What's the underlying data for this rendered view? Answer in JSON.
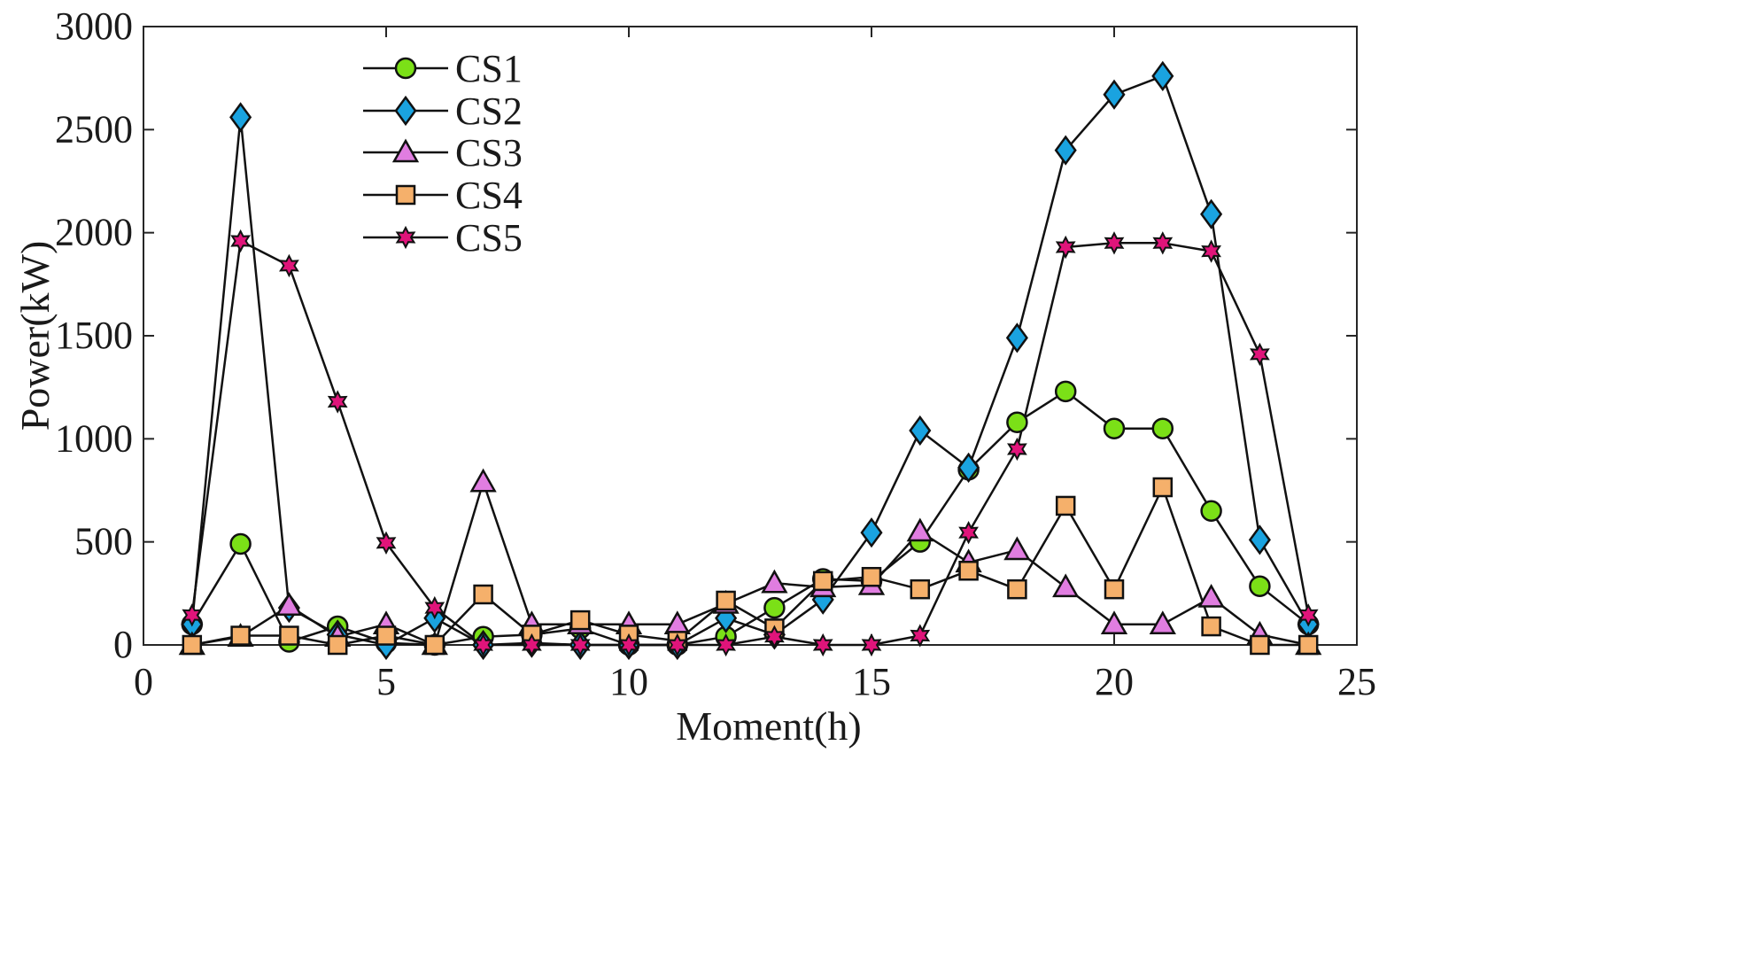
{
  "chart_data": {
    "type": "line",
    "xlabel": "Moment(h)",
    "ylabel": "Power(kW)",
    "xlim": [
      0,
      25
    ],
    "ylim": [
      0,
      3000
    ],
    "xticks": [
      0,
      5,
      10,
      15,
      20,
      25
    ],
    "yticks": [
      0,
      500,
      1000,
      1500,
      2000,
      2500,
      3000
    ],
    "grid": false,
    "legend_position": "top-left",
    "x": [
      1,
      2,
      3,
      4,
      5,
      6,
      7,
      8,
      9,
      10,
      11,
      12,
      13,
      14,
      15,
      16,
      17,
      18,
      19,
      20,
      21,
      22,
      23,
      24
    ],
    "series": [
      {
        "name": "CS1",
        "marker": "circle",
        "color": "#7be017",
        "values": [
          100,
          490,
          15,
          90,
          10,
          0,
          40,
          50,
          80,
          0,
          0,
          40,
          180,
          320,
          310,
          500,
          850,
          1080,
          1230,
          1050,
          1050,
          650,
          285,
          100
        ]
      },
      {
        "name": "CS2",
        "marker": "diamond",
        "color": "#1aa3e0",
        "values": [
          100,
          2560,
          180,
          50,
          0,
          130,
          0,
          10,
          0,
          0,
          0,
          130,
          50,
          220,
          545,
          1040,
          860,
          1490,
          2400,
          2670,
          2760,
          2090,
          510,
          100
        ]
      },
      {
        "name": "CS3",
        "marker": "triangle",
        "color": "#e07de0",
        "values": [
          0,
          40,
          190,
          40,
          100,
          0,
          790,
          100,
          100,
          100,
          100,
          200,
          300,
          280,
          290,
          550,
          400,
          460,
          280,
          100,
          100,
          230,
          50,
          0
        ]
      },
      {
        "name": "CS4",
        "marker": "square",
        "color": "#f5b06b",
        "values": [
          0,
          45,
          45,
          0,
          45,
          0,
          245,
          50,
          120,
          50,
          20,
          215,
          80,
          310,
          330,
          270,
          360,
          270,
          675,
          270,
          765,
          90,
          0,
          0
        ]
      },
      {
        "name": "CS5",
        "marker": "star",
        "color": "#e0147a",
        "values": [
          145,
          1960,
          1840,
          1180,
          495,
          180,
          0,
          0,
          0,
          0,
          0,
          0,
          40,
          0,
          0,
          45,
          545,
          950,
          1930,
          1950,
          1950,
          1910,
          1410,
          145
        ]
      }
    ]
  }
}
